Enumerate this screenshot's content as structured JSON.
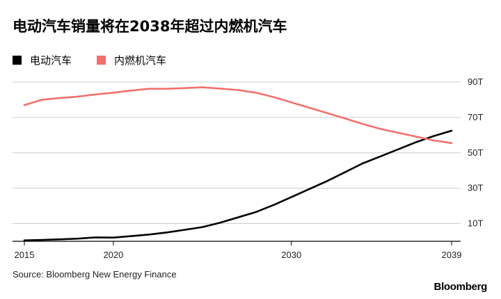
{
  "title": "电动汽车销量将在2038年超过内燃机汽车",
  "source": "Source: Bloomberg New Energy Finance",
  "brand": "Bloomberg",
  "colors": {
    "ev": "#000000",
    "ice": "#f2706c",
    "grid": "#cccccc",
    "axis": "#000000"
  },
  "chart_data": {
    "type": "line",
    "title": "电动汽车销量将在2038年超过内燃机汽车",
    "xlabel": "",
    "ylabel": "",
    "xlim": [
      2015,
      2039
    ],
    "ylim": [
      0,
      90
    ],
    "grid": true,
    "legend_position": "top-left",
    "x_ticks": [
      2015,
      2020,
      2030,
      2039
    ],
    "y_ticks": [
      {
        "value": 10,
        "label": "10T"
      },
      {
        "value": 30,
        "label": "30T"
      },
      {
        "value": 50,
        "label": "50T"
      },
      {
        "value": 70,
        "label": "70T"
      },
      {
        "value": 90,
        "label": "90T"
      }
    ],
    "x": [
      2015,
      2016,
      2017,
      2018,
      2019,
      2020,
      2021,
      2022,
      2023,
      2024,
      2025,
      2026,
      2027,
      2028,
      2029,
      2030,
      2031,
      2032,
      2033,
      2034,
      2035,
      2036,
      2037,
      2038,
      2039
    ],
    "series": [
      {
        "name": "电动汽车",
        "key": "ev",
        "values": [
          0.5,
          0.8,
          1.1,
          1.5,
          2.2,
          2.1,
          2.9,
          3.8,
          5.0,
          6.5,
          8.0,
          10.5,
          13.5,
          16.5,
          20.5,
          25.0,
          29.5,
          34.0,
          39.0,
          44.0,
          48.0,
          52.0,
          56.0,
          59.5,
          62.5
        ]
      },
      {
        "name": "内燃机汽车",
        "key": "ice",
        "values": [
          77.0,
          80.0,
          81.0,
          81.8,
          83.0,
          84.0,
          85.2,
          86.2,
          86.2,
          86.6,
          87.0,
          86.3,
          85.5,
          84.0,
          81.5,
          78.5,
          75.5,
          72.5,
          69.5,
          66.3,
          63.5,
          61.3,
          59.2,
          57.0,
          55.5
        ]
      }
    ]
  }
}
